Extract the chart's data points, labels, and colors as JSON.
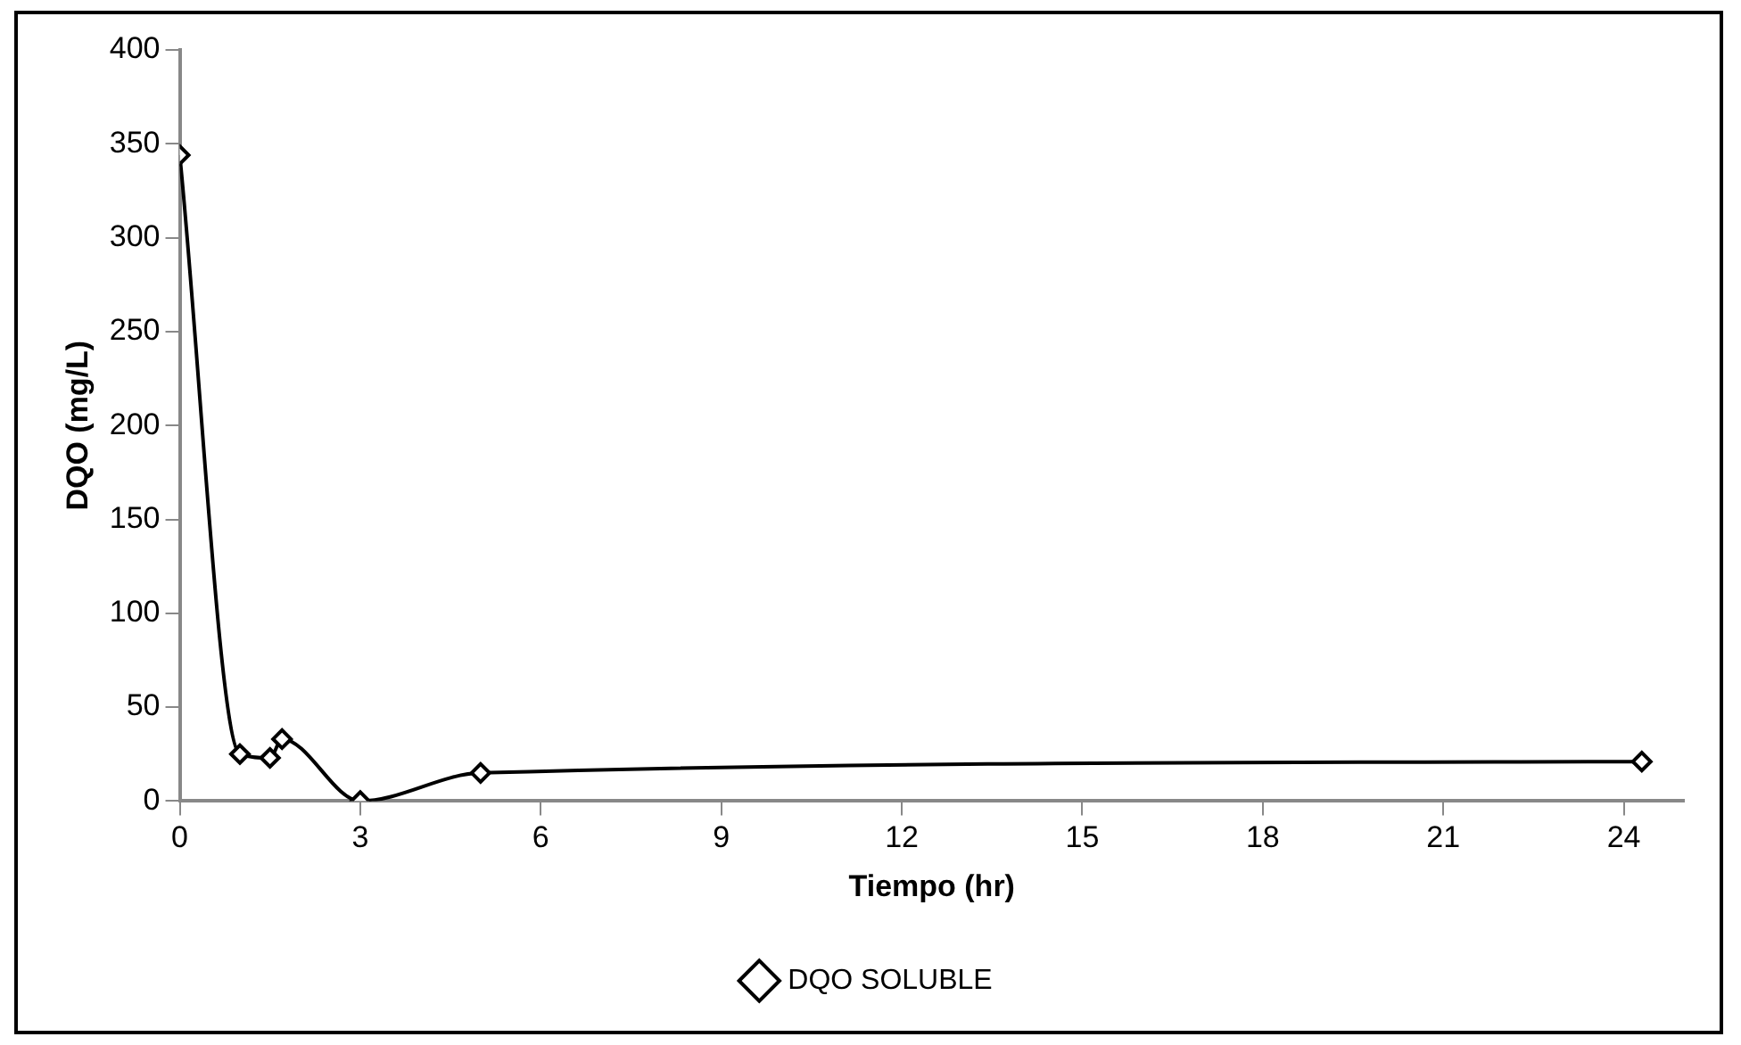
{
  "chart_data": {
    "type": "line",
    "xlabel": "Tiempo (hr)",
    "ylabel": "DQO (mg/L)",
    "series": [
      {
        "name": "DQO SOLUBLE",
        "color": "#000000",
        "x": [
          0,
          1,
          1.5,
          1.7,
          3,
          5,
          24.3
        ],
        "values": [
          344,
          25,
          23,
          33,
          0,
          15,
          21
        ]
      }
    ],
    "xlim": [
      0,
      25
    ],
    "xticks": [
      0,
      3,
      6,
      9,
      12,
      15,
      18,
      21,
      24
    ],
    "ylim": [
      0,
      400
    ],
    "yticks": [
      0,
      50,
      100,
      150,
      200,
      250,
      300,
      350,
      400
    ],
    "grid": false,
    "legend": "bottom",
    "marker": "diamond",
    "line_style": "solid"
  }
}
